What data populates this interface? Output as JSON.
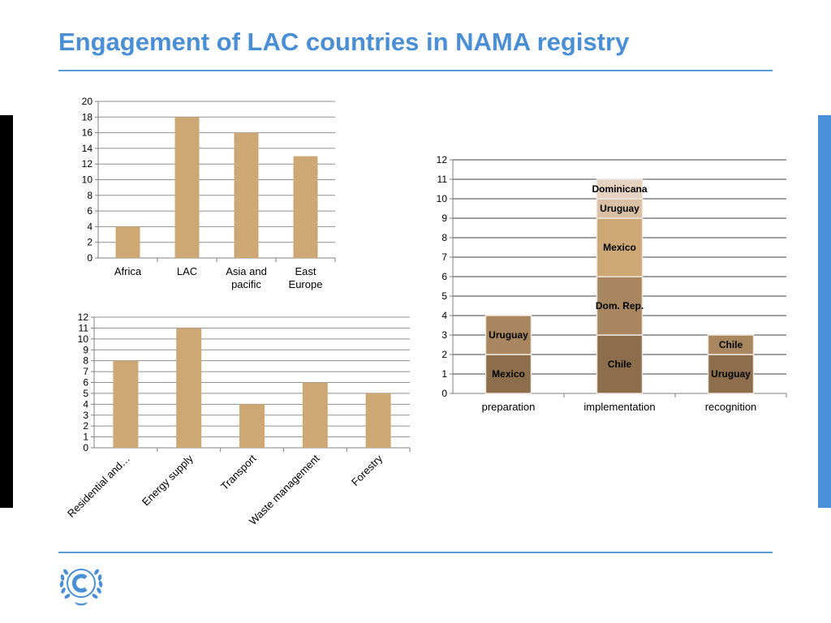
{
  "slide": {
    "title": "Engagement of LAC countries in NAMA registry"
  },
  "colors": {
    "title": "#4a8fd6",
    "rule": "#5b9bd5",
    "bar": "#cda774",
    "left_edge": "#000000",
    "right_edge": "#4a90d9",
    "segment_dark": "#8c6d4c",
    "segment_mid": "#a88760",
    "segment_light": "#cda774",
    "segment_pale": "#e5d3c1",
    "logo": "#4a8fd6"
  },
  "logo": {
    "icon": "un-emblem-icon"
  },
  "chart_data": [
    {
      "id": "regions",
      "type": "bar",
      "categories": [
        "Africa",
        "LAC",
        "Asia and pacific",
        "East Europe"
      ],
      "category_lines": [
        [
          "Africa"
        ],
        [
          "LAC"
        ],
        [
          "Asia and",
          "pacific"
        ],
        [
          "East",
          "Europe"
        ]
      ],
      "values": [
        4,
        18,
        16,
        13
      ],
      "ylim": [
        0,
        20
      ],
      "ytick_step": 2,
      "grid": true,
      "title": "",
      "xlabel": "",
      "ylabel": ""
    },
    {
      "id": "sectors",
      "type": "bar",
      "categories": [
        "Residential and…",
        "Energy supply",
        "Transport",
        "Waste management",
        "Forestry"
      ],
      "values": [
        8,
        11,
        4,
        6,
        5
      ],
      "ylim": [
        0,
        12
      ],
      "ytick_step": 1,
      "grid": true,
      "category_label_rotation": -45,
      "title": "",
      "xlabel": "",
      "ylabel": ""
    },
    {
      "id": "stages",
      "type": "stacked_bar",
      "categories": [
        "preparation",
        "implementation",
        "recognition"
      ],
      "ylim": [
        0,
        12
      ],
      "ytick_step": 1,
      "grid": true,
      "stacks": [
        {
          "category": "preparation",
          "segments": [
            {
              "label": "Mexico",
              "value": 2,
              "color": "#8c6d4c"
            },
            {
              "label": "Uruguay",
              "value": 2,
              "color": "#a88760"
            }
          ]
        },
        {
          "category": "implementation",
          "segments": [
            {
              "label": "Chile",
              "value": 3,
              "color": "#8c6d4c"
            },
            {
              "label": "Dom. Rep.",
              "value": 3,
              "color": "#a88760"
            },
            {
              "label": "Mexico",
              "value": 3,
              "color": "#cda774"
            },
            {
              "label": "Uruguay",
              "value": 1,
              "color": "#d9bfa3"
            },
            {
              "label": "Dominicana",
              "value": 1,
              "color": "#e5d3c1"
            }
          ]
        },
        {
          "category": "recognition",
          "segments": [
            {
              "label": "Uruguay",
              "value": 2,
              "color": "#8c6d4c"
            },
            {
              "label": "Chile",
              "value": 1,
              "color": "#a88760"
            }
          ]
        }
      ],
      "title": "",
      "xlabel": "",
      "ylabel": ""
    }
  ]
}
